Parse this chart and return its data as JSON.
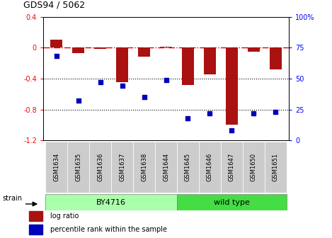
{
  "title": "GDS94 / 5062",
  "samples": [
    "GSM1634",
    "GSM1635",
    "GSM1636",
    "GSM1637",
    "GSM1638",
    "GSM1644",
    "GSM1645",
    "GSM1646",
    "GSM1647",
    "GSM1650",
    "GSM1651"
  ],
  "log_ratio": [
    0.1,
    -0.07,
    -0.02,
    -0.45,
    -0.12,
    0.01,
    -0.48,
    -0.35,
    -1.0,
    -0.05,
    -0.28
  ],
  "percentile_rank": [
    68,
    32,
    47,
    44,
    35,
    49,
    18,
    22,
    8,
    22,
    23
  ],
  "by4716_indices": [
    0,
    1,
    2,
    3,
    4,
    5
  ],
  "wildtype_indices": [
    6,
    7,
    8,
    9,
    10
  ],
  "by4716_color": "#AAFFAA",
  "wildtype_color": "#44DD44",
  "ylim_left": [
    -1.2,
    0.4
  ],
  "ylim_right": [
    0,
    100
  ],
  "bar_color": "#AA1111",
  "dot_color": "#0000BB",
  "hline_color": "#DD0000",
  "bg_color": "#FFFFFF",
  "ticklabel_box_color": "#CCCCCC",
  "left_yticks": [
    -1.2,
    -0.8,
    -0.4,
    0.0,
    0.4
  ],
  "left_yticklabels": [
    "-1.2",
    "-0.8",
    "-0.4",
    "0",
    "0.4"
  ],
  "right_yticks": [
    0,
    25,
    50,
    75,
    100
  ],
  "right_yticklabels": [
    "0",
    "25",
    "50",
    "75",
    "100%"
  ]
}
